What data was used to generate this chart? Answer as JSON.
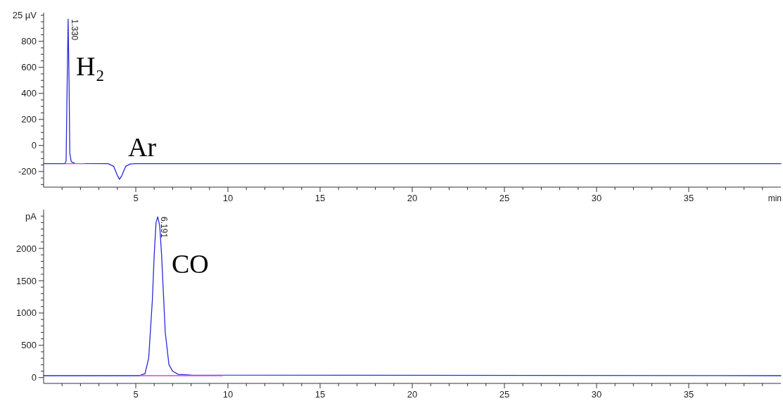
{
  "chart_data": [
    {
      "type": "line",
      "xlim": [
        0,
        40
      ],
      "ylim": [
        -320,
        1020
      ],
      "xlabel": "min",
      "ylabel": "25 µV",
      "xticks": [
        {
          "value": 1,
          "label": null
        },
        {
          "value": 2,
          "label": null
        },
        {
          "value": 3,
          "label": null
        },
        {
          "value": 4,
          "label": null
        },
        5,
        {
          "value": 6,
          "label": null
        },
        {
          "value": 7,
          "label": null
        },
        {
          "value": 8,
          "label": null
        },
        {
          "value": 9,
          "label": null
        },
        10,
        {
          "value": 11,
          "label": null
        },
        {
          "value": 12,
          "label": null
        },
        {
          "value": 13,
          "label": null
        },
        {
          "value": 14,
          "label": null
        },
        15,
        {
          "value": 16,
          "label": null
        },
        {
          "value": 17,
          "label": null
        },
        {
          "value": 18,
          "label": null
        },
        {
          "value": 19,
          "label": null
        },
        20,
        {
          "value": 21,
          "label": null
        },
        {
          "value": 22,
          "label": null
        },
        {
          "value": 23,
          "label": null
        },
        {
          "value": 24,
          "label": null
        },
        25,
        {
          "value": 26,
          "label": null
        },
        {
          "value": 27,
          "label": null
        },
        {
          "value": 28,
          "label": null
        },
        {
          "value": 29,
          "label": null
        },
        30,
        {
          "value": 31,
          "label": null
        },
        {
          "value": 32,
          "label": null
        },
        {
          "value": 33,
          "label": null
        },
        {
          "value": 34,
          "label": null
        },
        35,
        {
          "value": 36,
          "label": null
        },
        {
          "value": 37,
          "label": null
        },
        {
          "value": 38,
          "label": null
        },
        {
          "value": 39,
          "label": null
        }
      ],
      "yticks": [
        {
          "value": -300,
          "label": null
        },
        {
          "value": -250,
          "label": null
        },
        -200,
        {
          "value": -150,
          "label": null
        },
        {
          "value": -100,
          "label": null
        },
        {
          "value": -50,
          "label": null
        },
        0,
        {
          "value": 50,
          "label": null
        },
        {
          "value": 100,
          "label": null
        },
        {
          "value": 150,
          "label": null
        },
        200,
        {
          "value": 250,
          "label": null
        },
        {
          "value": 300,
          "label": null
        },
        {
          "value": 350,
          "label": null
        },
        400,
        {
          "value": 450,
          "label": null
        },
        {
          "value": 500,
          "label": null
        },
        {
          "value": 550,
          "label": null
        },
        600,
        {
          "value": 650,
          "label": null
        },
        {
          "value": 700,
          "label": null
        },
        {
          "value": 750,
          "label": null
        },
        800,
        {
          "value": 850,
          "label": null
        },
        {
          "value": 900,
          "label": null
        },
        {
          "value": 950,
          "label": null
        },
        {
          "value": 1000,
          "label": null
        }
      ],
      "series": [
        {
          "color": "#2b2bd9",
          "x": [
            0,
            1.15,
            1.22,
            1.28,
            1.33,
            1.38,
            1.42,
            1.5,
            1.7,
            3.5,
            3.8,
            4.0,
            4.12,
            4.25,
            4.45,
            4.7,
            5,
            40
          ],
          "values": [
            -140,
            -140,
            -120,
            500,
            970,
            500,
            -60,
            -125,
            -138,
            -140,
            -160,
            -230,
            -260,
            -230,
            -160,
            -142,
            -140,
            -140
          ]
        },
        {
          "color": "#e040e0",
          "x": [
            1.2,
            2.2
          ],
          "values": [
            -140,
            -140
          ]
        }
      ],
      "annotations": [
        {
          "text": "1.330",
          "x": 1.33,
          "y": 970
        },
        "H₂",
        "Ar"
      ]
    },
    {
      "type": "line",
      "xlim": [
        0,
        40
      ],
      "ylim": [
        -90,
        2600
      ],
      "ylabel": "pA",
      "xticks": [
        {
          "value": 1,
          "label": null
        },
        {
          "value": 2,
          "label": null
        },
        {
          "value": 3,
          "label": null
        },
        {
          "value": 4,
          "label": null
        },
        5,
        {
          "value": 6,
          "label": null
        },
        {
          "value": 7,
          "label": null
        },
        {
          "value": 8,
          "label": null
        },
        {
          "value": 9,
          "label": null
        },
        10,
        {
          "value": 11,
          "label": null
        },
        {
          "value": 12,
          "label": null
        },
        {
          "value": 13,
          "label": null
        },
        {
          "value": 14,
          "label": null
        },
        15,
        {
          "value": 16,
          "label": null
        },
        {
          "value": 17,
          "label": null
        },
        {
          "value": 18,
          "label": null
        },
        {
          "value": 19,
          "label": null
        },
        20,
        {
          "value": 21,
          "label": null
        },
        {
          "value": 22,
          "label": null
        },
        {
          "value": 23,
          "label": null
        },
        {
          "value": 24,
          "label": null
        },
        25,
        {
          "value": 26,
          "label": null
        },
        {
          "value": 27,
          "label": null
        },
        {
          "value": 28,
          "label": null
        },
        {
          "value": 29,
          "label": null
        },
        30,
        {
          "value": 31,
          "label": null
        },
        {
          "value": 32,
          "label": null
        },
        {
          "value": 33,
          "label": null
        },
        {
          "value": 34,
          "label": null
        },
        35,
        {
          "value": 36,
          "label": null
        },
        {
          "value": 37,
          "label": null
        },
        {
          "value": 38,
          "label": null
        },
        {
          "value": 39,
          "label": null
        }
      ],
      "yticks": [
        0,
        {
          "value": 100,
          "label": null
        },
        {
          "value": 200,
          "label": null
        },
        {
          "value": 300,
          "label": null
        },
        {
          "value": 400,
          "label": null
        },
        500,
        {
          "value": 600,
          "label": null
        },
        {
          "value": 700,
          "label": null
        },
        {
          "value": 800,
          "label": null
        },
        {
          "value": 900,
          "label": null
        },
        1000,
        {
          "value": 1100,
          "label": null
        },
        {
          "value": 1200,
          "label": null
        },
        {
          "value": 1300,
          "label": null
        },
        {
          "value": 1400,
          "label": null
        },
        1500,
        {
          "value": 1600,
          "label": null
        },
        {
          "value": 1700,
          "label": null
        },
        {
          "value": 1800,
          "label": null
        },
        {
          "value": 1900,
          "label": null
        },
        2000,
        {
          "value": 2100,
          "label": null
        },
        {
          "value": 2200,
          "label": null
        },
        {
          "value": 2300,
          "label": null
        },
        {
          "value": 2400,
          "label": null
        },
        {
          "value": 2500,
          "label": null
        }
      ],
      "series": [
        {
          "color": "#2b2bd9",
          "x": [
            0,
            5.2,
            5.5,
            5.7,
            5.9,
            6.0,
            6.1,
            6.191,
            6.3,
            6.4,
            6.5,
            6.6,
            6.8,
            7.0,
            7.3,
            8,
            40
          ],
          "values": [
            30,
            30,
            60,
            300,
            1200,
            1900,
            2400,
            2490,
            2350,
            1900,
            1300,
            700,
            200,
            100,
            50,
            40,
            30
          ]
        },
        {
          "color": "#e040e0",
          "x": [
            5.2,
            9.7
          ],
          "values": [
            30,
            30
          ]
        }
      ],
      "annotations": [
        {
          "text": "6.191",
          "x": 6.191,
          "y": 2490
        },
        "CO"
      ]
    }
  ]
}
